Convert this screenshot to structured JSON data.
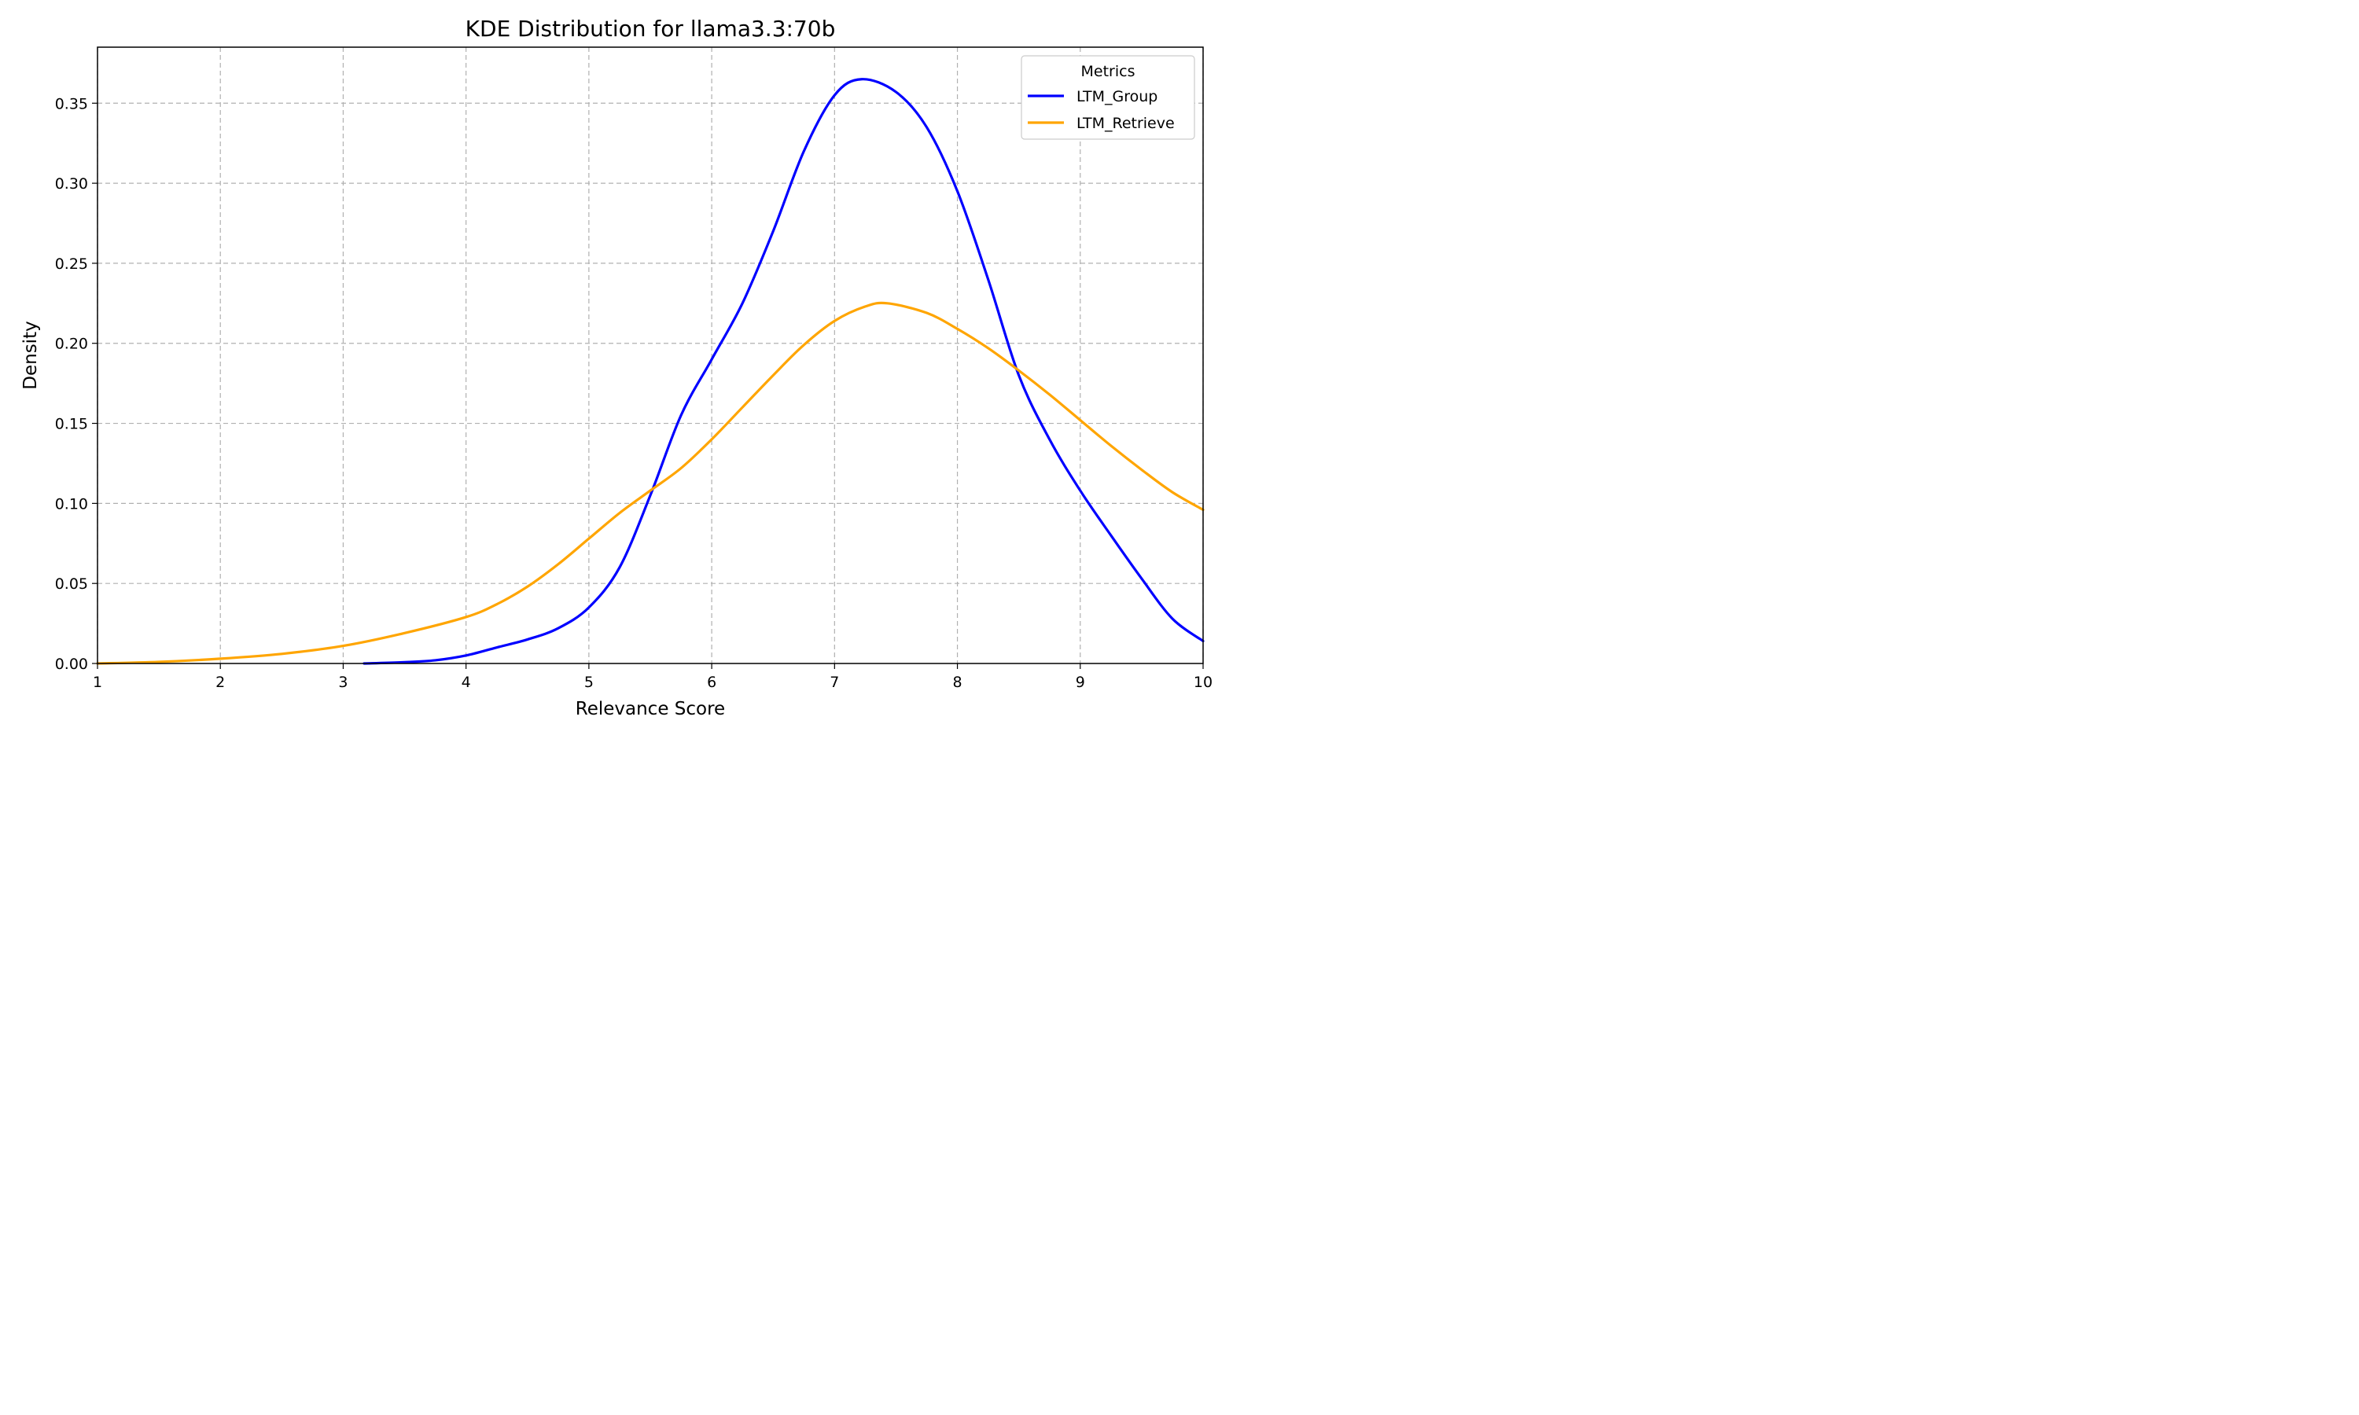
{
  "chart_data": {
    "type": "line",
    "title": "KDE Distribution for llama3.3:70b",
    "xlabel": "Relevance Score",
    "ylabel": "Density",
    "xlim": [
      1,
      10
    ],
    "ylim": [
      0,
      0.385
    ],
    "xticks": [
      1,
      2,
      3,
      4,
      5,
      6,
      7,
      8,
      9,
      10
    ],
    "yticks": [
      0.0,
      0.05,
      0.1,
      0.15,
      0.2,
      0.25,
      0.3,
      0.35
    ],
    "ytick_labels": [
      "0.00",
      "0.05",
      "0.10",
      "0.15",
      "0.20",
      "0.25",
      "0.30",
      "0.35"
    ],
    "grid": true,
    "legend": {
      "title": "Metrics",
      "placement": "top-right"
    },
    "series": [
      {
        "name": "LTM_Group",
        "color": "#0000ff",
        "x": [
          3.17,
          3.5,
          3.75,
          4.0,
          4.25,
          4.5,
          4.75,
          5.0,
          5.25,
          5.5,
          5.75,
          6.0,
          6.25,
          6.5,
          6.75,
          7.0,
          7.22,
          7.5,
          7.75,
          8.0,
          8.25,
          8.5,
          8.75,
          9.0,
          9.25,
          9.5,
          9.75,
          10.0
        ],
        "y": [
          0.0,
          0.0008,
          0.002,
          0.005,
          0.01,
          0.015,
          0.022,
          0.035,
          0.06,
          0.105,
          0.155,
          0.19,
          0.225,
          0.27,
          0.32,
          0.355,
          0.365,
          0.357,
          0.335,
          0.295,
          0.24,
          0.18,
          0.14,
          0.108,
          0.08,
          0.053,
          0.028,
          0.014
        ]
      },
      {
        "name": "LTM_Retrieve",
        "color": "#ffa500",
        "x": [
          1.0,
          1.5,
          2.0,
          2.5,
          3.0,
          3.5,
          4.0,
          4.25,
          4.5,
          4.75,
          5.0,
          5.25,
          5.5,
          5.75,
          6.0,
          6.25,
          6.5,
          6.75,
          7.0,
          7.25,
          7.43,
          7.75,
          8.0,
          8.25,
          8.5,
          8.75,
          9.0,
          9.25,
          9.5,
          9.75,
          10.0
        ],
        "y": [
          0.0,
          0.001,
          0.003,
          0.006,
          0.011,
          0.019,
          0.029,
          0.037,
          0.048,
          0.062,
          0.078,
          0.094,
          0.108,
          0.122,
          0.14,
          0.16,
          0.18,
          0.199,
          0.214,
          0.223,
          0.225,
          0.219,
          0.209,
          0.197,
          0.183,
          0.168,
          0.152,
          0.136,
          0.121,
          0.107,
          0.096
        ]
      }
    ]
  }
}
